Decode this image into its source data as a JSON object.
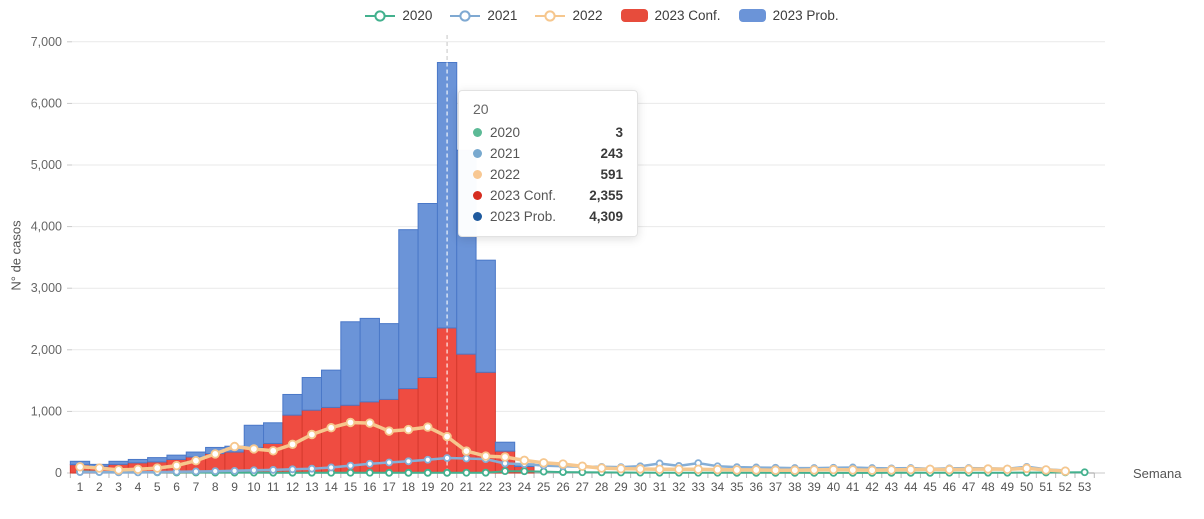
{
  "axes": {
    "y_label": "N° de casos",
    "x_label": "Semana",
    "y_ticks": [
      "0",
      "1,000",
      "2,000",
      "3,000",
      "4,000",
      "5,000",
      "6,000",
      "7,000"
    ],
    "y_max": 7000,
    "grid": true
  },
  "legend": [
    {
      "label": "2020",
      "type": "line",
      "color": "#43b18e"
    },
    {
      "label": "2021",
      "type": "line",
      "color": "#7fa9d2"
    },
    {
      "label": "2022",
      "type": "line",
      "color": "#f6c78e"
    },
    {
      "label": "2023 Conf.",
      "type": "bar",
      "color": "#e74c3c"
    },
    {
      "label": "2023 Prob.",
      "type": "bar",
      "color": "#6b94d8"
    }
  ],
  "tooltip": {
    "title": "20",
    "week_index": 20,
    "rows": [
      {
        "label": "2020",
        "value": "3",
        "color": "#5cba96"
      },
      {
        "label": "2021",
        "value": "243",
        "color": "#78a9cf"
      },
      {
        "label": "2022",
        "value": "591",
        "color": "#f8c893"
      },
      {
        "label": "2023 Conf.",
        "value": "2,355",
        "color": "#d62d20"
      },
      {
        "label": "2023 Prob.",
        "value": "4,309",
        "color": "#1e5a9e"
      }
    ]
  },
  "chart_data": {
    "type": "combo-bar-line",
    "title": "",
    "xlabel": "Semana",
    "ylabel": "N° de casos",
    "ylim": [
      0,
      7000
    ],
    "legend_position": "top-center",
    "categories": [
      1,
      2,
      3,
      4,
      5,
      6,
      7,
      8,
      9,
      10,
      11,
      12,
      13,
      14,
      15,
      16,
      17,
      18,
      19,
      20,
      21,
      22,
      23,
      24,
      25,
      26,
      27,
      28,
      29,
      30,
      31,
      32,
      33,
      34,
      35,
      36,
      37,
      38,
      39,
      40,
      41,
      42,
      43,
      44,
      45,
      46,
      47,
      48,
      49,
      50,
      51,
      52,
      53
    ],
    "series": [
      {
        "name": "2020",
        "type": "line",
        "color": "#43b18e",
        "line_width": 2,
        "values": [
          25,
          18,
          14,
          12,
          10,
          9,
          8,
          7,
          6,
          6,
          5,
          5,
          5,
          4,
          4,
          4,
          3,
          3,
          3,
          3,
          4,
          5,
          30,
          28,
          22,
          15,
          12,
          10,
          8,
          6,
          5,
          5,
          4,
          4,
          3,
          3,
          3,
          3,
          2,
          2,
          2,
          2,
          3,
          3,
          3,
          4,
          4,
          5,
          5,
          6,
          8,
          10,
          12
        ]
      },
      {
        "name": "2021",
        "type": "line",
        "color": "#85aed6",
        "line_width": 2.5,
        "values": [
          15,
          15,
          10,
          10,
          15,
          20,
          25,
          30,
          35,
          45,
          50,
          60,
          70,
          90,
          120,
          150,
          170,
          190,
          215,
          243,
          235,
          225,
          155,
          145,
          120,
          110,
          100,
          100,
          95,
          110,
          155,
          115,
          160,
          110,
          95,
          90,
          85,
          80,
          80,
          85,
          90,
          80,
          75,
          80,
          70,
          75,
          80,
          75,
          70,
          100,
          60,
          40,
          null
        ]
      },
      {
        "name": "2022",
        "type": "line",
        "color": "#f6c78e",
        "line_width": 3.5,
        "values": [
          100,
          80,
          50,
          60,
          80,
          120,
          200,
          310,
          430,
          390,
          360,
          465,
          625,
          735,
          820,
          810,
          680,
          705,
          745,
          591,
          355,
          275,
          260,
          205,
          165,
          145,
          110,
          80,
          70,
          65,
          60,
          60,
          60,
          55,
          50,
          50,
          45,
          45,
          50,
          55,
          50,
          45,
          50,
          55,
          60,
          55,
          60,
          65,
          60,
          75,
          50,
          30,
          null
        ]
      },
      {
        "name": "2023 Conf.",
        "type": "bar",
        "stack": "2023",
        "color": "#ef4c41",
        "border_color": "#d63a2e",
        "values": [
          135,
          110,
          140,
          165,
          180,
          220,
          260,
          315,
          340,
          415,
          480,
          940,
          1020,
          1065,
          1100,
          1155,
          1195,
          1370,
          1550,
          2355,
          1930,
          1635,
          355,
          105,
          null,
          null,
          null,
          null,
          null,
          null,
          null,
          null,
          null,
          null,
          null,
          null,
          null,
          null,
          null,
          null,
          null,
          null,
          null,
          null,
          null,
          null,
          null,
          null,
          null,
          null,
          null,
          null,
          null
        ]
      },
      {
        "name": "2023 Prob.",
        "type": "bar",
        "stack": "2023",
        "color": "#6b94d8",
        "border_color": "#4a78c8",
        "values": [
          55,
          30,
          50,
          55,
          70,
          70,
          80,
          100,
          95,
          360,
          335,
          335,
          530,
          605,
          1355,
          1355,
          1230,
          2580,
          2825,
          4309,
          3310,
          1820,
          145,
          45,
          null,
          null,
          null,
          null,
          null,
          null,
          null,
          null,
          null,
          null,
          null,
          null,
          null,
          null,
          null,
          null,
          null,
          null,
          null,
          null,
          null,
          null,
          null,
          null,
          null,
          null,
          null,
          null,
          null
        ]
      }
    ],
    "crosshair_week": 20
  }
}
